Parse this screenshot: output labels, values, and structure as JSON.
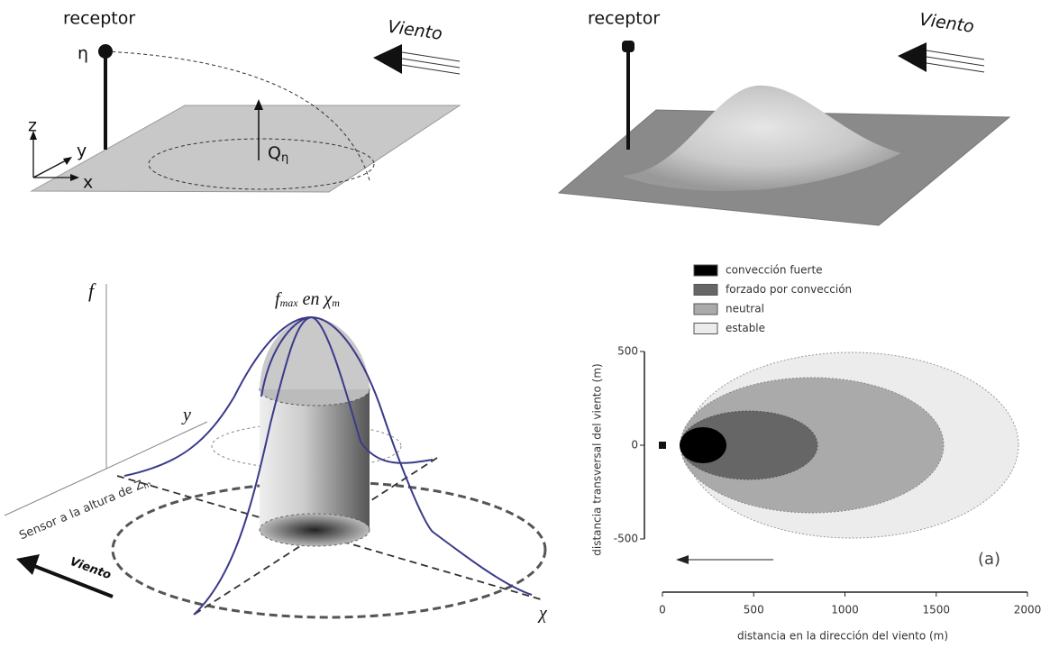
{
  "panel_a": {
    "receptor": "receptor",
    "wind": "Viento",
    "eta": "η",
    "z": "z",
    "y": "y",
    "x": "x",
    "source": "Q",
    "source_sub": "η"
  },
  "panel_b": {
    "receptor": "receptor",
    "wind": "Viento"
  },
  "panel_c": {
    "f": "f",
    "peak_f": "f",
    "peak_f_sub": "max",
    "peak_en": "en",
    "peak_chi": "χ",
    "peak_chi_sub": "m",
    "sensor": "Sensor a la altura de Z",
    "sensor_sub": "m",
    "y": "y",
    "chi": "χ",
    "wind": "Viento"
  },
  "panel_d": {
    "legend": [
      "convección fuerte",
      "forzado por convección",
      "neutral",
      "estable"
    ],
    "xlim": [
      0,
      2000
    ],
    "ylim": [
      -500,
      500
    ],
    "xticks": [
      0,
      500,
      1000,
      1500,
      2000
    ],
    "yticks": [
      -500,
      0,
      500
    ],
    "xlabel": "distancia en la dirección del viento (m)",
    "ylabel": "distancia transversal del viento (m)",
    "tag": "(a)"
  }
}
